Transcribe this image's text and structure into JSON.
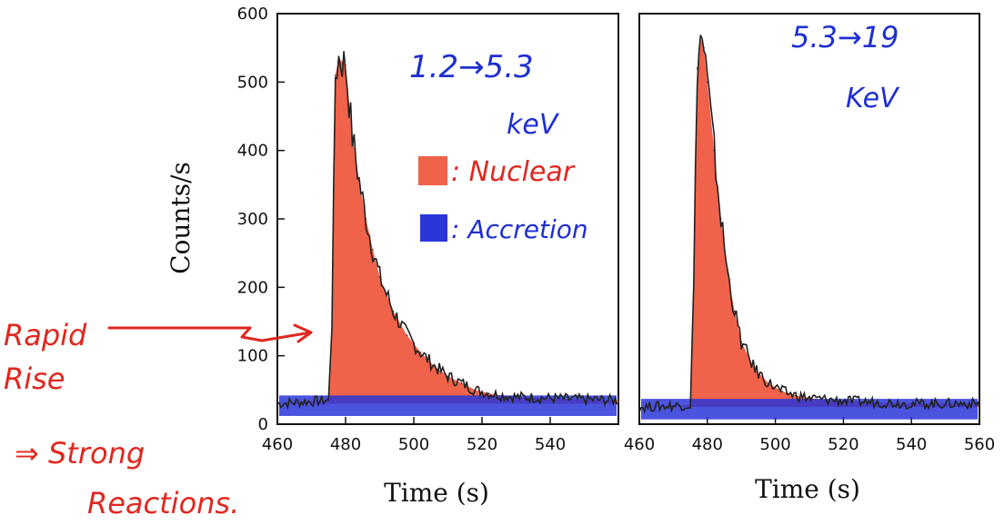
{
  "colors": {
    "nuclear": "#f0624a",
    "accretion": "#2a36d8",
    "curve": "#222222",
    "annotation_red": "#e0271f",
    "annotation_blue": "#1f2fd1"
  },
  "annotations": {
    "left_energy": "1.2→5.3",
    "left_unit": "keV",
    "right_energy": "5.3→19",
    "right_unit": "KeV",
    "legend_nuclear": ": Nuclear",
    "legend_accretion": ": Accretion",
    "rapid": "Rapid",
    "rise": "Rise",
    "strong": "⇒ Strong",
    "reactions": "Reactions."
  },
  "chart_data": [
    {
      "type": "area",
      "title": "",
      "xlabel": "Time (s)",
      "ylabel": "Counts/s",
      "xlim": [
        460,
        560
      ],
      "ylim": [
        0,
        600
      ],
      "xticks": [
        "460",
        "480",
        "500",
        "520",
        "540"
      ],
      "yticks": [
        "0",
        "100",
        "200",
        "300",
        "400",
        "500",
        "600"
      ],
      "grid": false,
      "legend": "top-right",
      "series": [
        {
          "name": "Nuclear",
          "x": [
            460,
            475,
            476,
            477,
            478,
            480,
            482,
            484,
            486,
            488,
            490,
            494,
            498,
            502,
            506,
            510,
            514,
            518,
            522,
            526,
            530,
            540,
            550,
            560
          ],
          "y": [
            30,
            35,
            150,
            510,
            535,
            525,
            420,
            355,
            300,
            255,
            215,
            165,
            130,
            105,
            85,
            70,
            60,
            50,
            45,
            42,
            40,
            38,
            36,
            35
          ]
        },
        {
          "name": "Accretion",
          "x": [
            460,
            560
          ],
          "y": [
            30,
            30
          ]
        }
      ]
    },
    {
      "type": "area",
      "title": "",
      "xlabel": "Time (s)",
      "ylabel": "",
      "xlim": [
        460,
        560
      ],
      "ylim": [
        0,
        600
      ],
      "xticks": [
        "460",
        "480",
        "500",
        "520",
        "540",
        "560"
      ],
      "yticks": [],
      "grid": false,
      "legend": "none",
      "series": [
        {
          "name": "Nuclear",
          "x": [
            460,
            475,
            476,
            477,
            478,
            479,
            480,
            482,
            484,
            486,
            488,
            490,
            494,
            498,
            502,
            506,
            510,
            520,
            530,
            540,
            550,
            560
          ],
          "y": [
            25,
            28,
            200,
            520,
            565,
            550,
            500,
            400,
            300,
            220,
            165,
            120,
            80,
            60,
            48,
            42,
            38,
            34,
            32,
            30,
            30,
            30
          ]
        },
        {
          "name": "Accretion",
          "x": [
            460,
            560
          ],
          "y": [
            25,
            25
          ]
        }
      ]
    }
  ]
}
